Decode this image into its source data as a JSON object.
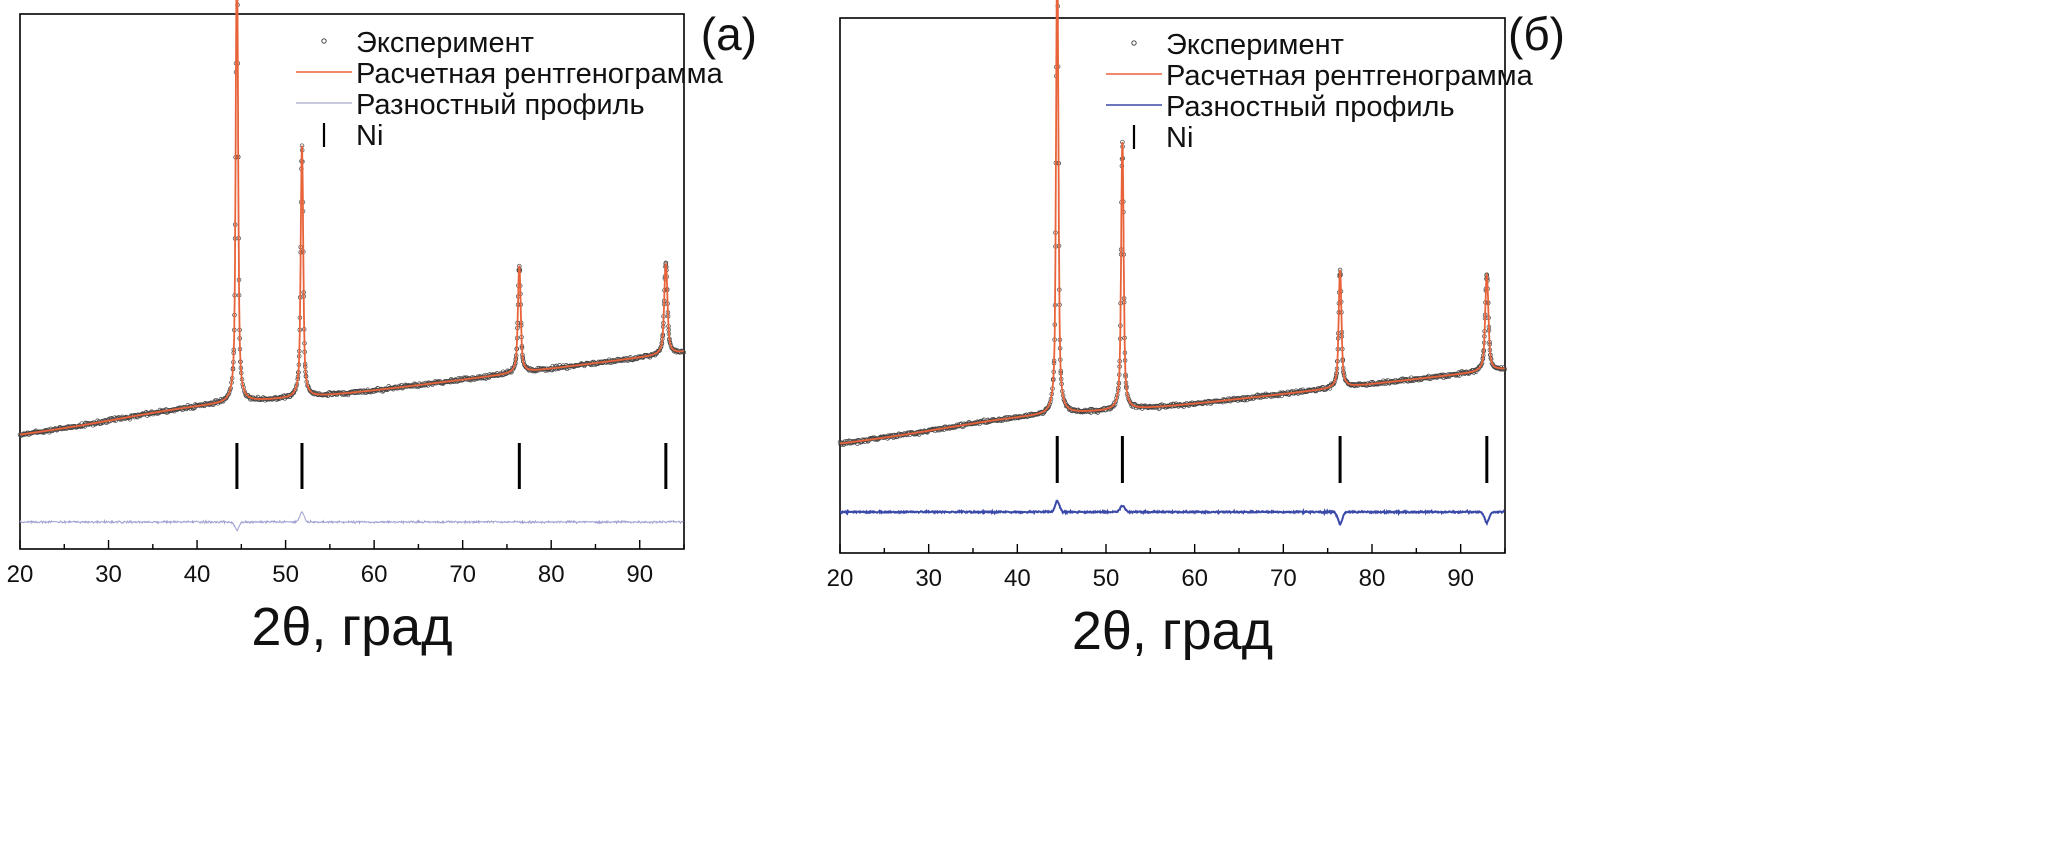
{
  "chart_data": [
    {
      "type": "line",
      "panel_label": "(а)",
      "xlabel": "2θ, град",
      "ylabel": "",
      "xlim": [
        20,
        95
      ],
      "xticks": [
        20,
        30,
        40,
        50,
        60,
        70,
        80,
        90
      ],
      "legend_position": "top-right",
      "legend": [
        {
          "label": "Эксперимент",
          "marker": "open-circle",
          "color": "#333333"
        },
        {
          "label": "Расчетная рентгенограмма",
          "marker": "line",
          "color": "#e8633a"
        },
        {
          "label": "Разностный профиль",
          "marker": "line",
          "color": "#b7b9d6"
        },
        {
          "label": "Ni",
          "marker": "vertical-bar",
          "color": "#000000"
        }
      ],
      "series": [
        {
          "name": "Эксперимент",
          "color": "#444444",
          "marker": "open-circle"
        },
        {
          "name": "Расчетная рентгенограмма",
          "color": "#e8633a"
        },
        {
          "name": "Разностный профиль",
          "color": "#9d9fd0"
        }
      ],
      "background": {
        "start": 0.0,
        "end": 0.155
      },
      "peaks": [
        {
          "x": 44.5,
          "height": 0.84,
          "width": 0.17
        },
        {
          "x": 51.85,
          "height": 0.47,
          "width": 0.18
        },
        {
          "x": 76.4,
          "height": 0.2,
          "width": 0.2
        },
        {
          "x": 92.95,
          "height": 0.17,
          "width": 0.23
        }
      ],
      "ni_reflections": [
        44.5,
        51.85,
        76.4,
        92.95
      ],
      "difference_features": [
        {
          "x": 44.5,
          "amplitude": -0.015
        },
        {
          "x": 51.85,
          "amplitude": 0.018
        }
      ]
    },
    {
      "type": "line",
      "panel_label": "(б)",
      "xlabel": "2θ, град",
      "ylabel": "",
      "xlim": [
        20,
        95
      ],
      "xticks": [
        20,
        30,
        40,
        50,
        60,
        70,
        80,
        90
      ],
      "legend_position": "top-right",
      "legend": [
        {
          "label": "Эксперимент",
          "marker": "open-circle",
          "color": "#333333"
        },
        {
          "label": "Расчетная рентгенограмма",
          "marker": "line",
          "color": "#e8633a"
        },
        {
          "label": "Разностный профиль",
          "marker": "line",
          "color": "#3b4aa8"
        },
        {
          "label": "Ni",
          "marker": "vertical-bar",
          "color": "#000000"
        }
      ],
      "series": [
        {
          "name": "Эксперимент",
          "color": "#444444",
          "marker": "open-circle"
        },
        {
          "name": "Расчетная рентгенограмма",
          "color": "#e8633a"
        },
        {
          "name": "Разностный профиль",
          "color": "#3b4aa8"
        }
      ],
      "background": {
        "start": 0.0,
        "end": 0.14
      },
      "peaks": [
        {
          "x": 44.5,
          "height": 0.86,
          "width": 0.17
        },
        {
          "x": 51.85,
          "height": 0.5,
          "width": 0.18
        },
        {
          "x": 76.4,
          "height": 0.22,
          "width": 0.2
        },
        {
          "x": 92.95,
          "height": 0.18,
          "width": 0.23
        }
      ],
      "ni_reflections": [
        44.5,
        51.85,
        76.4,
        92.95
      ],
      "difference_features": [
        {
          "x": 44.5,
          "amplitude": 0.02
        },
        {
          "x": 51.85,
          "amplitude": 0.012
        },
        {
          "x": 76.4,
          "amplitude": -0.022
        },
        {
          "x": 92.95,
          "amplitude": -0.02
        }
      ]
    }
  ]
}
